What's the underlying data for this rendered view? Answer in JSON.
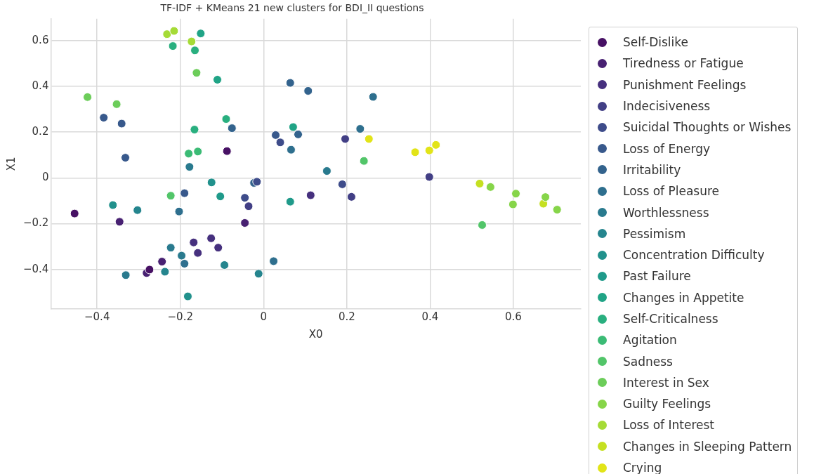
{
  "chart_data": {
    "type": "scatter",
    "title": "TF-IDF + KMeans 21 new clusters for BDI_II questions",
    "xlabel": "X0",
    "ylabel": "X1",
    "xlim": [
      -0.511,
      0.762
    ],
    "ylim": [
      -0.573,
      0.695
    ],
    "xticks": [
      {
        "value": -0.4,
        "label": "−0.4"
      },
      {
        "value": -0.2,
        "label": "−0.2"
      },
      0.0,
      0.2,
      0.4,
      0.6
    ],
    "yticks": [
      {
        "value": -0.4,
        "label": "−0.4"
      },
      {
        "value": -0.2,
        "label": "−0.2"
      },
      0.0,
      0.2,
      0.4,
      0.6
    ],
    "grid": true,
    "legend": "right",
    "marker": "circle",
    "series": [
      {
        "name": "Self-Dislike",
        "color": "#471164",
        "x": [
          -0.088,
          -0.454,
          -0.274
        ],
        "values": [
          0.117,
          -0.156,
          -0.401
        ]
      },
      {
        "name": "Tiredness or Fatigue",
        "color": "#482172",
        "x": [
          -0.346,
          -0.045,
          -0.244,
          -0.281
        ],
        "values": [
          -0.192,
          -0.197,
          -0.366,
          -0.416
        ]
      },
      {
        "name": "Punishment Feelings",
        "color": "#46307e",
        "x": [
          -0.126,
          -0.168,
          -0.109,
          -0.158,
          0.113
        ],
        "values": [
          -0.264,
          -0.282,
          -0.305,
          -0.328,
          -0.076
        ]
      },
      {
        "name": "Indecisiveness",
        "color": "#423f85",
        "x": [
          -0.036,
          0.196,
          0.211,
          0.398
        ],
        "values": [
          -0.124,
          0.17,
          -0.083,
          0.004
        ]
      },
      {
        "name": "Suicidal Thoughts or Wishes",
        "color": "#3e4c8a",
        "x": [
          -0.016,
          -0.045,
          0.04,
          0.189
        ],
        "values": [
          -0.017,
          -0.087,
          0.155,
          -0.028
        ]
      },
      {
        "name": "Loss of Energy",
        "color": "#38598c",
        "x": [
          -0.384,
          -0.341,
          -0.332,
          -0.19,
          0.029
        ],
        "values": [
          0.263,
          0.237,
          0.088,
          -0.067,
          0.187
        ]
      },
      {
        "name": "Irritability",
        "color": "#33638d",
        "x": [
          -0.076,
          -0.023,
          0.064,
          0.107,
          0.083
        ],
        "values": [
          0.217,
          -0.022,
          0.415,
          0.38,
          0.19
        ]
      },
      {
        "name": "Loss of Pleasure",
        "color": "#2e6f8e",
        "x": [
          -0.203,
          -0.19,
          0.263,
          0.232,
          0.066,
          0.024
        ],
        "values": [
          -0.147,
          -0.375,
          0.354,
          0.214,
          0.123,
          -0.364
        ]
      },
      {
        "name": "Worthlessness",
        "color": "#297a8e",
        "x": [
          -0.178,
          -0.223,
          -0.197,
          -0.331,
          0.152
        ],
        "values": [
          0.048,
          -0.305,
          -0.34,
          -0.425,
          0.03
        ]
      },
      {
        "name": "Pessimism",
        "color": "#25858e",
        "x": [
          -0.303,
          -0.094,
          -0.237,
          -0.012
        ],
        "values": [
          -0.141,
          -0.381,
          -0.41,
          -0.419
        ]
      },
      {
        "name": "Concentration Difficulty",
        "color": "#21918c",
        "x": [
          -0.125,
          -0.362,
          -0.182
        ],
        "values": [
          -0.02,
          -0.119,
          -0.518
        ]
      },
      {
        "name": "Past Failure",
        "color": "#1f9a8a",
        "x": [
          -0.104,
          0.064
        ],
        "values": [
          -0.081,
          -0.104
        ]
      },
      {
        "name": "Changes in Appetite",
        "color": "#20a486",
        "x": [
          -0.151,
          -0.111,
          0.071
        ],
        "values": [
          0.631,
          0.429,
          0.222
        ]
      },
      {
        "name": "Self-Criticalness",
        "color": "#29af7f",
        "x": [
          -0.218,
          -0.165,
          -0.09,
          -0.166
        ],
        "values": [
          0.576,
          0.557,
          0.257,
          0.211
        ]
      },
      {
        "name": "Agitation",
        "color": "#3bbb75",
        "x": [
          -0.18,
          -0.158
        ],
        "values": [
          0.106,
          0.115
        ]
      },
      {
        "name": "Sadness",
        "color": "#52c569",
        "x": [
          -0.223,
          0.241,
          0.525
        ],
        "values": [
          -0.078,
          0.074,
          -0.206
        ]
      },
      {
        "name": "Interest in Sex",
        "color": "#6ccd5a",
        "x": [
          -0.161,
          -0.423,
          -0.353
        ],
        "values": [
          0.459,
          0.353,
          0.322
        ]
      },
      {
        "name": "Guilty Feelings",
        "color": "#86d549",
        "x": [
          0.545,
          0.606,
          0.599,
          0.677,
          0.705
        ],
        "values": [
          -0.04,
          -0.069,
          -0.116,
          -0.084,
          -0.139
        ]
      },
      {
        "name": "Loss of Interest",
        "color": "#a5db36",
        "x": [
          -0.232,
          -0.215,
          -0.173
        ],
        "values": [
          0.628,
          0.642,
          0.596
        ]
      },
      {
        "name": "Changes in Sleeping Pattern",
        "color": "#c5e021",
        "x": [
          0.519,
          0.672
        ],
        "values": [
          -0.025,
          -0.113
        ]
      },
      {
        "name": "Crying",
        "color": "#e2e418",
        "x": [
          0.253,
          0.364,
          0.398,
          0.414
        ],
        "values": [
          0.17,
          0.112,
          0.12,
          0.144
        ]
      }
    ]
  }
}
